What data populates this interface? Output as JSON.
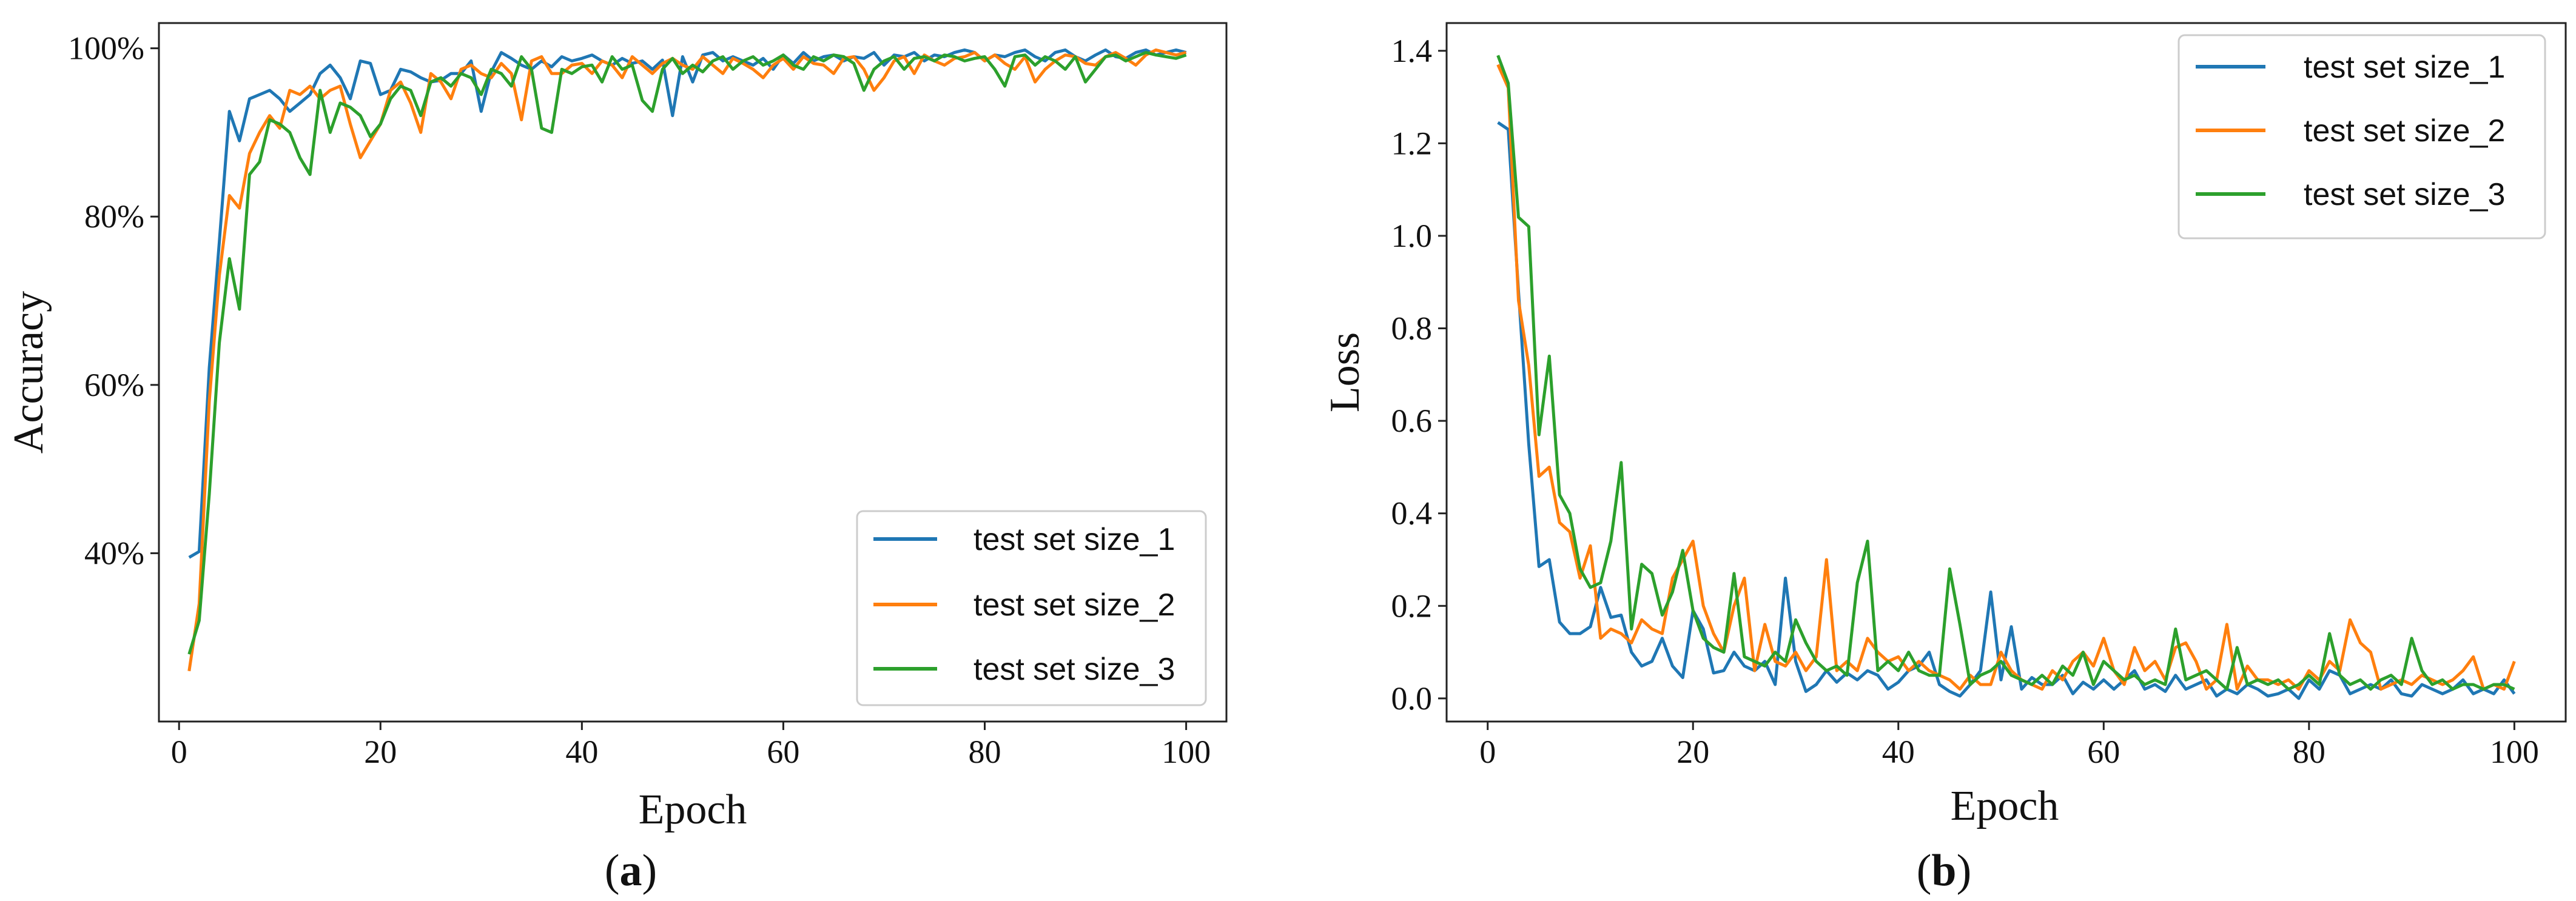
{
  "chart_data": [
    {
      "id": "a",
      "type": "line",
      "caption": {
        "open": "(",
        "letter": "a",
        "close": ")"
      },
      "xlabel": "Epoch",
      "ylabel": "Accuracy",
      "xlim": [
        -2,
        104
      ],
      "ylim": [
        20,
        103
      ],
      "xticks": [
        0,
        20,
        40,
        60,
        80,
        100
      ],
      "xtick_labels": [
        "0",
        "20",
        "40",
        "60",
        "80",
        "100"
      ],
      "yticks": [
        40,
        60,
        80,
        100
      ],
      "ytick_labels": [
        "40%",
        "60%",
        "80%",
        "100%"
      ],
      "legend_position": "lower-right",
      "series": [
        {
          "name": "test set size_1",
          "color": "#1f77b4",
          "x_start": 1,
          "x_step": 1,
          "values": [
            39.5,
            40.2,
            62.0,
            77.0,
            92.5,
            89.0,
            94.0,
            94.5,
            95.0,
            94.0,
            92.5,
            93.5,
            94.5,
            97.0,
            98.0,
            96.5,
            94.0,
            98.5,
            98.2,
            94.5,
            95.0,
            97.5,
            97.2,
            96.5,
            96.0,
            96.2,
            97.0,
            97.0,
            98.5,
            92.5,
            97.2,
            99.5,
            98.8,
            98.0,
            97.5,
            98.5,
            97.8,
            99.0,
            98.5,
            98.8,
            99.2,
            98.5,
            98.0,
            98.8,
            98.2,
            98.5,
            97.5,
            98.6,
            92.0,
            99.0,
            96.0,
            99.2,
            99.5,
            98.5,
            99.0,
            98.5,
            98.0,
            98.8,
            97.5,
            99.2,
            98.2,
            99.5,
            98.5,
            99.0,
            99.2,
            98.5,
            99.0,
            98.8,
            99.5,
            98.0,
            99.2,
            99.0,
            99.5,
            98.5,
            99.2,
            99.0,
            99.5,
            99.8,
            99.5,
            98.5,
            99.2,
            99.0,
            99.5,
            99.8,
            99.0,
            98.5,
            99.5,
            99.8,
            99.0,
            98.5,
            99.2,
            99.8,
            99.0,
            98.8,
            99.5,
            99.8,
            99.2,
            99.5,
            99.8,
            99.5
          ]
        },
        {
          "name": "test set size_2",
          "color": "#ff7f0e",
          "x_start": 1,
          "x_step": 1,
          "values": [
            26.0,
            34.0,
            58.0,
            73.0,
            82.5,
            81.0,
            87.5,
            90.0,
            92.0,
            90.5,
            95.0,
            94.5,
            95.5,
            94.0,
            95.0,
            95.5,
            91.0,
            87.0,
            89.0,
            91.0,
            95.0,
            96.0,
            93.5,
            90.0,
            97.0,
            96.0,
            94.0,
            97.5,
            98.0,
            97.0,
            96.5,
            98.2,
            97.0,
            91.5,
            98.5,
            99.0,
            97.0,
            97.0,
            98.0,
            98.2,
            97.0,
            98.5,
            98.0,
            96.5,
            99.0,
            98.0,
            97.0,
            98.2,
            98.8,
            98.0,
            97.5,
            99.0,
            98.0,
            97.0,
            98.8,
            98.2,
            97.5,
            96.5,
            98.0,
            98.8,
            97.5,
            99.0,
            98.2,
            98.0,
            97.0,
            98.8,
            99.0,
            97.5,
            95.0,
            96.5,
            98.5,
            99.0,
            97.0,
            99.2,
            98.5,
            98.0,
            98.8,
            99.0,
            99.5,
            98.5,
            99.2,
            98.2,
            97.5,
            99.0,
            96.0,
            97.5,
            98.5,
            99.2,
            99.0,
            98.2,
            98.0,
            99.0,
            99.5,
            98.8,
            98.0,
            99.2,
            99.8,
            99.5,
            99.2,
            99.5
          ]
        },
        {
          "name": "test set size_3",
          "color": "#2ca02c",
          "x_start": 1,
          "x_step": 1,
          "values": [
            28.0,
            32.0,
            47.0,
            65.0,
            75.0,
            69.0,
            85.0,
            86.5,
            91.5,
            91.0,
            90.0,
            87.0,
            85.0,
            95.0,
            90.0,
            93.5,
            93.0,
            92.0,
            89.5,
            91.0,
            94.0,
            95.5,
            95.0,
            92.0,
            96.0,
            96.5,
            95.5,
            97.0,
            96.5,
            94.5,
            97.5,
            97.0,
            95.5,
            99.0,
            97.5,
            90.5,
            90.0,
            97.5,
            97.0,
            97.8,
            98.0,
            96.0,
            99.0,
            97.5,
            98.0,
            93.8,
            92.5,
            97.5,
            98.8,
            97.0,
            98.0,
            97.2,
            98.5,
            99.0,
            97.5,
            98.5,
            99.0,
            98.0,
            98.5,
            99.2,
            98.0,
            97.5,
            99.0,
            98.5,
            99.2,
            99.0,
            98.2,
            95.0,
            97.5,
            98.5,
            99.0,
            97.5,
            98.8,
            99.0,
            98.5,
            99.2,
            99.0,
            98.5,
            98.8,
            99.0,
            97.5,
            95.5,
            99.0,
            99.2,
            98.0,
            99.0,
            98.5,
            97.5,
            99.0,
            96.0,
            97.5,
            99.0,
            99.2,
            98.5,
            99.0,
            99.5,
            99.2,
            99.0,
            98.8,
            99.2
          ]
        }
      ]
    },
    {
      "id": "b",
      "type": "line",
      "caption": {
        "open": "(",
        "letter": "b",
        "close": ")"
      },
      "xlabel": "Epoch",
      "ylabel": "Loss",
      "xlim": [
        -4,
        105
      ],
      "ylim": [
        -0.05,
        1.46
      ],
      "xticks": [
        0,
        20,
        40,
        60,
        80,
        100
      ],
      "xtick_labels": [
        "0",
        "20",
        "40",
        "60",
        "80",
        "100"
      ],
      "yticks": [
        0.0,
        0.2,
        0.4,
        0.6,
        0.8,
        1.0,
        1.2,
        1.4
      ],
      "ytick_labels": [
        "0.0",
        "0.2",
        "0.4",
        "0.6",
        "0.8",
        "1.0",
        "1.2",
        "1.4"
      ],
      "legend_position": "top-right",
      "series": [
        {
          "name": "test set size_1",
          "color": "#1f77b4",
          "x_start": 1,
          "x_step": 1,
          "values": [
            1.245,
            1.23,
            0.88,
            0.55,
            0.285,
            0.3,
            0.165,
            0.14,
            0.14,
            0.155,
            0.24,
            0.175,
            0.18,
            0.1,
            0.07,
            0.08,
            0.13,
            0.07,
            0.045,
            0.19,
            0.15,
            0.055,
            0.06,
            0.1,
            0.07,
            0.06,
            0.08,
            0.03,
            0.26,
            0.08,
            0.015,
            0.03,
            0.06,
            0.035,
            0.055,
            0.04,
            0.06,
            0.05,
            0.02,
            0.035,
            0.06,
            0.07,
            0.1,
            0.03,
            0.015,
            0.005,
            0.03,
            0.06,
            0.23,
            0.04,
            0.155,
            0.02,
            0.045,
            0.03,
            0.03,
            0.05,
            0.01,
            0.035,
            0.02,
            0.04,
            0.02,
            0.04,
            0.06,
            0.02,
            0.03,
            0.015,
            0.05,
            0.02,
            0.03,
            0.04,
            0.005,
            0.02,
            0.01,
            0.03,
            0.02,
            0.005,
            0.01,
            0.02,
            0.0,
            0.04,
            0.02,
            0.06,
            0.05,
            0.01,
            0.02,
            0.03,
            0.02,
            0.04,
            0.01,
            0.005,
            0.03,
            0.02,
            0.01,
            0.02,
            0.04,
            0.01,
            0.02,
            0.01,
            0.04,
            0.01
          ]
        },
        {
          "name": "test set size_2",
          "color": "#ff7f0e",
          "x_start": 1,
          "x_step": 1,
          "values": [
            1.37,
            1.32,
            0.86,
            0.72,
            0.48,
            0.5,
            0.38,
            0.36,
            0.26,
            0.33,
            0.13,
            0.15,
            0.14,
            0.12,
            0.17,
            0.15,
            0.14,
            0.26,
            0.3,
            0.34,
            0.2,
            0.14,
            0.1,
            0.2,
            0.26,
            0.06,
            0.16,
            0.08,
            0.07,
            0.1,
            0.06,
            0.09,
            0.3,
            0.06,
            0.08,
            0.06,
            0.13,
            0.1,
            0.08,
            0.09,
            0.06,
            0.08,
            0.06,
            0.05,
            0.04,
            0.02,
            0.05,
            0.03,
            0.03,
            0.1,
            0.06,
            0.04,
            0.03,
            0.02,
            0.06,
            0.04,
            0.08,
            0.1,
            0.07,
            0.13,
            0.06,
            0.03,
            0.11,
            0.06,
            0.08,
            0.04,
            0.11,
            0.12,
            0.08,
            0.02,
            0.04,
            0.16,
            0.02,
            0.07,
            0.04,
            0.04,
            0.03,
            0.04,
            0.02,
            0.06,
            0.04,
            0.08,
            0.06,
            0.17,
            0.12,
            0.1,
            0.02,
            0.03,
            0.04,
            0.03,
            0.05,
            0.04,
            0.03,
            0.04,
            0.06,
            0.09,
            0.02,
            0.03,
            0.02,
            0.08
          ]
        },
        {
          "name": "test set size_3",
          "color": "#2ca02c",
          "x_start": 1,
          "x_step": 1,
          "values": [
            1.39,
            1.33,
            1.04,
            1.02,
            0.57,
            0.74,
            0.44,
            0.4,
            0.28,
            0.24,
            0.25,
            0.34,
            0.51,
            0.15,
            0.29,
            0.27,
            0.18,
            0.23,
            0.32,
            0.19,
            0.13,
            0.11,
            0.1,
            0.27,
            0.09,
            0.08,
            0.07,
            0.1,
            0.08,
            0.17,
            0.12,
            0.08,
            0.06,
            0.07,
            0.05,
            0.25,
            0.34,
            0.06,
            0.08,
            0.06,
            0.1,
            0.06,
            0.05,
            0.05,
            0.28,
            0.16,
            0.03,
            0.05,
            0.06,
            0.08,
            0.05,
            0.04,
            0.03,
            0.05,
            0.03,
            0.07,
            0.05,
            0.1,
            0.03,
            0.08,
            0.06,
            0.04,
            0.05,
            0.03,
            0.04,
            0.03,
            0.15,
            0.04,
            0.05,
            0.06,
            0.04,
            0.02,
            0.11,
            0.03,
            0.04,
            0.03,
            0.04,
            0.02,
            0.03,
            0.05,
            0.03,
            0.14,
            0.05,
            0.03,
            0.04,
            0.02,
            0.04,
            0.05,
            0.03,
            0.13,
            0.06,
            0.03,
            0.04,
            0.02,
            0.03,
            0.03,
            0.02,
            0.03,
            0.03,
            0.02
          ]
        }
      ]
    }
  ]
}
